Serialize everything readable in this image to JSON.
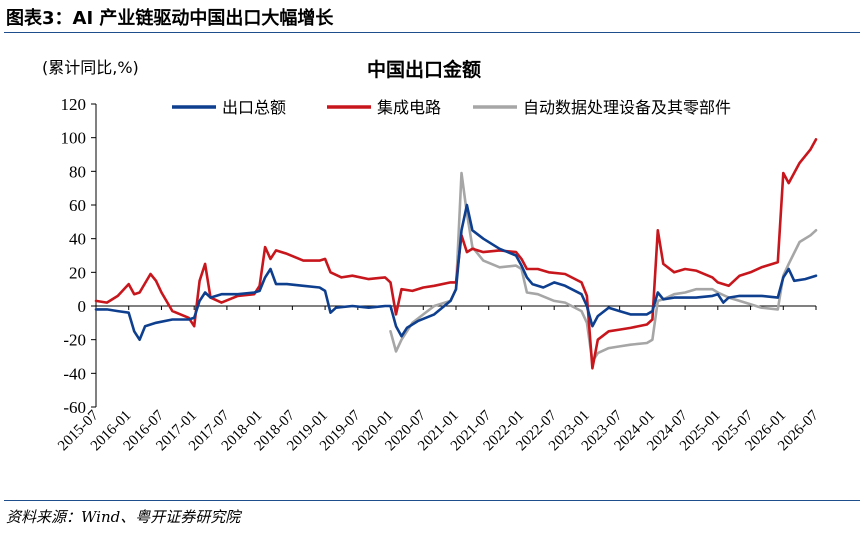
{
  "figure_title": "图表3：AI 产业链驱动中国出口大幅增长",
  "source": "资料来源：Wind、粤开证券研究院",
  "chart_data": {
    "type": "line",
    "title": "中国出口金额",
    "unit_label": "(累计同比,%)",
    "ylim": [
      -60,
      120
    ],
    "yticks": [
      -60,
      -40,
      -20,
      0,
      20,
      40,
      60,
      80,
      100,
      120
    ],
    "xlim": [
      "2015-07",
      "2026-07"
    ],
    "x_tick_labels": [
      "2015-07",
      "2016-01",
      "2016-07",
      "2017-01",
      "2017-07",
      "2018-01",
      "2018-07",
      "2019-01",
      "2019-07",
      "2020-01",
      "2020-07",
      "2021-01",
      "2021-07",
      "2022-01",
      "2022-07",
      "2023-01",
      "2023-07",
      "2024-01",
      "2024-07",
      "2025-01",
      "2025-07",
      "2026-01",
      "2026-07"
    ],
    "grid": false,
    "legend_position": "top",
    "series": [
      {
        "name": "出口总额",
        "color": "#0e3f8f",
        "points": [
          [
            "2015-07",
            -2
          ],
          [
            "2015-09",
            -2
          ],
          [
            "2015-11",
            -3
          ],
          [
            "2016-01",
            -4
          ],
          [
            "2016-02",
            -15
          ],
          [
            "2016-03",
            -20
          ],
          [
            "2016-04",
            -12
          ],
          [
            "2016-06",
            -10
          ],
          [
            "2016-09",
            -8
          ],
          [
            "2016-12",
            -8
          ],
          [
            "2017-01",
            -7
          ],
          [
            "2017-02",
            3
          ],
          [
            "2017-03",
            8
          ],
          [
            "2017-04",
            5
          ],
          [
            "2017-06",
            7
          ],
          [
            "2017-09",
            7
          ],
          [
            "2017-12",
            8
          ],
          [
            "2018-01",
            9
          ],
          [
            "2018-02",
            17
          ],
          [
            "2018-03",
            22
          ],
          [
            "2018-04",
            13
          ],
          [
            "2018-06",
            13
          ],
          [
            "2018-09",
            12
          ],
          [
            "2018-12",
            11
          ],
          [
            "2019-01",
            9
          ],
          [
            "2019-02",
            -4
          ],
          [
            "2019-03",
            -1
          ],
          [
            "2019-06",
            0
          ],
          [
            "2019-09",
            -1
          ],
          [
            "2019-12",
            0
          ],
          [
            "2020-01",
            0
          ],
          [
            "2020-02",
            -12
          ],
          [
            "2020-03",
            -18
          ],
          [
            "2020-04",
            -13
          ],
          [
            "2020-06",
            -9
          ],
          [
            "2020-09",
            -5
          ],
          [
            "2020-12",
            3
          ],
          [
            "2021-01",
            10
          ],
          [
            "2021-02",
            45
          ],
          [
            "2021-03",
            60
          ],
          [
            "2021-04",
            45
          ],
          [
            "2021-06",
            40
          ],
          [
            "2021-09",
            34
          ],
          [
            "2021-12",
            30
          ],
          [
            "2022-01",
            24
          ],
          [
            "2022-02",
            17
          ],
          [
            "2022-03",
            13
          ],
          [
            "2022-05",
            11
          ],
          [
            "2022-07",
            14
          ],
          [
            "2022-09",
            12
          ],
          [
            "2022-12",
            7
          ],
          [
            "2023-01",
            0
          ],
          [
            "2023-02",
            -12
          ],
          [
            "2023-03",
            -6
          ],
          [
            "2023-05",
            -1
          ],
          [
            "2023-07",
            -3
          ],
          [
            "2023-09",
            -5
          ],
          [
            "2023-12",
            -5
          ],
          [
            "2024-01",
            -3
          ],
          [
            "2024-02",
            8
          ],
          [
            "2024-03",
            4
          ],
          [
            "2024-05",
            5
          ],
          [
            "2024-07",
            5
          ],
          [
            "2024-09",
            5
          ],
          [
            "2024-12",
            6
          ],
          [
            "2025-01",
            7
          ],
          [
            "2025-02",
            2
          ],
          [
            "2025-03",
            5
          ],
          [
            "2025-05",
            6
          ],
          [
            "2025-07",
            6
          ],
          [
            "2025-09",
            6
          ],
          [
            "2025-12",
            5
          ],
          [
            "2026-01",
            17
          ],
          [
            "2026-02",
            22
          ],
          [
            "2026-03",
            15
          ],
          [
            "2026-05",
            16
          ],
          [
            "2026-07",
            18
          ]
        ]
      },
      {
        "name": "集成电路",
        "color": "#c8161d",
        "points": [
          [
            "2015-07",
            3
          ],
          [
            "2015-09",
            2
          ],
          [
            "2015-11",
            6
          ],
          [
            "2016-01",
            13
          ],
          [
            "2016-02",
            7
          ],
          [
            "2016-03",
            8
          ],
          [
            "2016-05",
            19
          ],
          [
            "2016-06",
            15
          ],
          [
            "2016-07",
            8
          ],
          [
            "2016-09",
            -3
          ],
          [
            "2016-12",
            -7
          ],
          [
            "2017-01",
            -12
          ],
          [
            "2017-02",
            15
          ],
          [
            "2017-03",
            25
          ],
          [
            "2017-04",
            5
          ],
          [
            "2017-06",
            2
          ],
          [
            "2017-09",
            6
          ],
          [
            "2017-12",
            7
          ],
          [
            "2018-01",
            12
          ],
          [
            "2018-02",
            35
          ],
          [
            "2018-03",
            28
          ],
          [
            "2018-04",
            33
          ],
          [
            "2018-06",
            31
          ],
          [
            "2018-09",
            27
          ],
          [
            "2018-12",
            27
          ],
          [
            "2019-01",
            28
          ],
          [
            "2019-02",
            20
          ],
          [
            "2019-04",
            17
          ],
          [
            "2019-06",
            18
          ],
          [
            "2019-09",
            16
          ],
          [
            "2019-12",
            17
          ],
          [
            "2020-01",
            14
          ],
          [
            "2020-02",
            -5
          ],
          [
            "2020-03",
            10
          ],
          [
            "2020-05",
            9
          ],
          [
            "2020-07",
            11
          ],
          [
            "2020-09",
            12
          ],
          [
            "2020-12",
            14
          ],
          [
            "2021-01",
            14
          ],
          [
            "2021-02",
            42
          ],
          [
            "2021-03",
            32
          ],
          [
            "2021-04",
            34
          ],
          [
            "2021-06",
            32
          ],
          [
            "2021-09",
            33
          ],
          [
            "2021-12",
            32
          ],
          [
            "2022-01",
            28
          ],
          [
            "2022-02",
            22
          ],
          [
            "2022-04",
            22
          ],
          [
            "2022-06",
            20
          ],
          [
            "2022-09",
            19
          ],
          [
            "2022-12",
            14
          ],
          [
            "2023-01",
            6
          ],
          [
            "2023-02",
            -37
          ],
          [
            "2023-03",
            -20
          ],
          [
            "2023-05",
            -15
          ],
          [
            "2023-07",
            -14
          ],
          [
            "2023-09",
            -13
          ],
          [
            "2023-12",
            -11
          ],
          [
            "2024-01",
            -8
          ],
          [
            "2024-02",
            45
          ],
          [
            "2024-03",
            25
          ],
          [
            "2024-05",
            20
          ],
          [
            "2024-07",
            22
          ],
          [
            "2024-09",
            21
          ],
          [
            "2024-12",
            17
          ],
          [
            "2025-01",
            14
          ],
          [
            "2025-03",
            12
          ],
          [
            "2025-05",
            18
          ],
          [
            "2025-07",
            20
          ],
          [
            "2025-09",
            23
          ],
          [
            "2025-12",
            26
          ],
          [
            "2026-01",
            79
          ],
          [
            "2026-02",
            73
          ],
          [
            "2026-04",
            85
          ],
          [
            "2026-06",
            93
          ],
          [
            "2026-07",
            99
          ]
        ]
      },
      {
        "name": "自动数据处理设备及其零部件",
        "color": "#a6a6a6",
        "points": [
          [
            "2020-01",
            -15
          ],
          [
            "2020-02",
            -27
          ],
          [
            "2020-03",
            -20
          ],
          [
            "2020-05",
            -10
          ],
          [
            "2020-07",
            -5
          ],
          [
            "2020-09",
            0
          ],
          [
            "2020-12",
            3
          ],
          [
            "2021-01",
            10
          ],
          [
            "2021-02",
            79
          ],
          [
            "2021-03",
            55
          ],
          [
            "2021-04",
            35
          ],
          [
            "2021-06",
            27
          ],
          [
            "2021-09",
            23
          ],
          [
            "2021-12",
            24
          ],
          [
            "2022-01",
            22
          ],
          [
            "2022-02",
            8
          ],
          [
            "2022-04",
            7
          ],
          [
            "2022-07",
            3
          ],
          [
            "2022-09",
            2
          ],
          [
            "2022-12",
            -3
          ],
          [
            "2023-01",
            -10
          ],
          [
            "2023-02",
            -33
          ],
          [
            "2023-03",
            -28
          ],
          [
            "2023-05",
            -25
          ],
          [
            "2023-07",
            -24
          ],
          [
            "2023-09",
            -23
          ],
          [
            "2023-12",
            -22
          ],
          [
            "2024-01",
            -20
          ],
          [
            "2024-02",
            3
          ],
          [
            "2024-03",
            4
          ],
          [
            "2024-05",
            7
          ],
          [
            "2024-07",
            8
          ],
          [
            "2024-09",
            10
          ],
          [
            "2024-12",
            10
          ],
          [
            "2025-01",
            8
          ],
          [
            "2025-03",
            5
          ],
          [
            "2025-05",
            3
          ],
          [
            "2025-07",
            1
          ],
          [
            "2025-09",
            -1
          ],
          [
            "2025-12",
            -2
          ],
          [
            "2026-01",
            18
          ],
          [
            "2026-02",
            25
          ],
          [
            "2026-04",
            38
          ],
          [
            "2026-06",
            42
          ],
          [
            "2026-07",
            45
          ]
        ]
      }
    ]
  }
}
